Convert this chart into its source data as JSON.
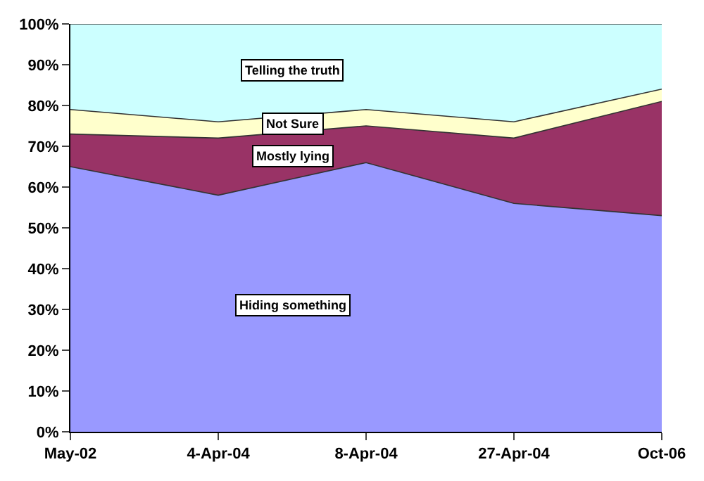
{
  "chart_data": {
    "type": "area",
    "stacked": true,
    "categories": [
      "May-02",
      "4-Apr-04",
      "8-Apr-04",
      "27-Apr-04",
      "Oct-06"
    ],
    "series": [
      {
        "name": "Hiding something",
        "color": "#9999ff",
        "values": [
          65,
          58,
          66,
          56,
          53
        ]
      },
      {
        "name": "Mostly lying",
        "color": "#993366",
        "values": [
          8,
          14,
          9,
          16,
          28
        ]
      },
      {
        "name": "Not Sure",
        "color": "#ffffcc",
        "values": [
          6,
          4,
          4,
          4,
          3
        ]
      },
      {
        "name": "Telling the truth",
        "color": "#ccffff",
        "values": [
          21,
          24,
          21,
          24,
          16
        ]
      }
    ],
    "ylim": [
      0,
      100
    ],
    "yticks": [
      {
        "value": 0,
        "label": "0%"
      },
      {
        "value": 10,
        "label": "10%"
      },
      {
        "value": 20,
        "label": "20%"
      },
      {
        "value": 30,
        "label": "30%"
      },
      {
        "value": 40,
        "label": "40%"
      },
      {
        "value": 50,
        "label": "50%"
      },
      {
        "value": 60,
        "label": "60%"
      },
      {
        "value": 70,
        "label": "70%"
      },
      {
        "value": 80,
        "label": "80%"
      },
      {
        "value": 90,
        "label": "90%"
      },
      {
        "value": 100,
        "label": "100%"
      }
    ],
    "legend": false
  }
}
